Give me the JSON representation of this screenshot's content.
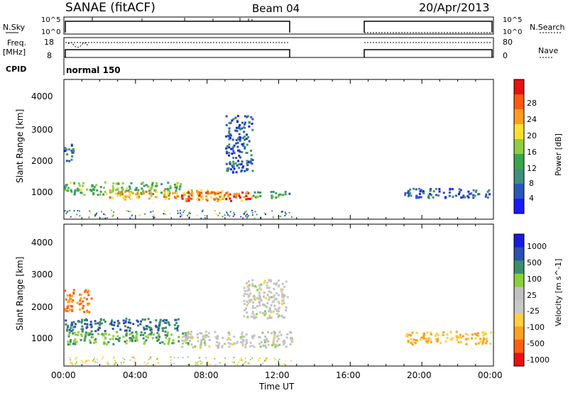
{
  "header": {
    "title": "SANAE (fitACF)",
    "beam": "Beam 04",
    "date": "20/Apr/2013"
  },
  "meta_panel": {
    "nsky_label": "N.Sky",
    "nsearch_label": "N.Search",
    "nsky_ticks": [
      "10^5",
      "10^0"
    ],
    "nsearch_ticks": [
      "10^5",
      "10^0"
    ],
    "freq_label_line1": "Freq.",
    "freq_label_line2": "[MHz]",
    "freq_ticks": [
      "18",
      "8"
    ],
    "nave_label": "Nave",
    "nave_ticks": [
      "80",
      "0"
    ],
    "cpid_label": "CPID",
    "cpid_value": "normal 150"
  },
  "colors": {
    "power": [
      "#1a1aff",
      "#2a56b8",
      "#3f8f7a",
      "#3aa54a",
      "#8fcf3f",
      "#ffe030",
      "#ff9d20",
      "#ff5a10",
      "#e81010"
    ],
    "velocity": [
      "#e81010",
      "#ff6010",
      "#ffa020",
      "#ffd040",
      "#c8c8c8",
      "#c0c0c0",
      "#8ad03a",
      "#3a8f6a",
      "#2a50b0",
      "#1a1ae0"
    ]
  },
  "chart_data": [
    {
      "type": "heatmap",
      "name": "power-panel",
      "ylabel": "Slant Range [km]",
      "yticks": [
        "4000",
        "3000",
        "2000",
        "1000"
      ],
      "ylim": [
        200,
        4600
      ],
      "xlim": [
        0,
        24
      ],
      "colorbar_label": "Power [dB]",
      "colorbar_ticks": [
        "28",
        "24",
        "20",
        "16",
        "12",
        "8",
        "4"
      ],
      "colorbar_range": [
        0,
        32
      ],
      "regions": [
        {
          "t0": 0.0,
          "t1": 6.5,
          "r0": 1000,
          "r1": 1400,
          "value": 14
        },
        {
          "t0": 2.5,
          "t1": 9.0,
          "r0": 850,
          "r1": 1150,
          "value": 22
        },
        {
          "t0": 6.5,
          "t1": 10.5,
          "r0": 800,
          "r1": 1100,
          "value": 26
        },
        {
          "t0": 10.5,
          "t1": 12.7,
          "r0": 900,
          "r1": 1100,
          "value": 12
        },
        {
          "t0": 0.0,
          "t1": 0.5,
          "r0": 2000,
          "r1": 2600,
          "value": 6
        },
        {
          "t0": 9.0,
          "t1": 10.5,
          "r0": 1700,
          "r1": 3500,
          "value": 6
        },
        {
          "t0": 19.0,
          "t1": 24.0,
          "r0": 900,
          "r1": 1200,
          "value": 6
        }
      ]
    },
    {
      "type": "heatmap",
      "name": "velocity-panel",
      "xlabel": "Time UT",
      "ylabel": "Slant Range [km]",
      "xticks": [
        "00:00",
        "04:00",
        "08:00",
        "12:00",
        "16:00",
        "20:00",
        "00:00"
      ],
      "yticks": [
        "4000",
        "3000",
        "2000",
        "1000"
      ],
      "ylim": [
        200,
        4600
      ],
      "xlim": [
        0,
        24
      ],
      "colorbar_label": "Velocity [m s^-1]",
      "colorbar_ticks": [
        "1000",
        "500",
        "100",
        "25",
        "-25",
        "-100",
        "-500",
        "-1000"
      ],
      "regions": [
        {
          "t0": 0.0,
          "t1": 6.5,
          "r0": 1300,
          "r1": 1700,
          "value": 500
        },
        {
          "t0": 0.0,
          "t1": 7.0,
          "r0": 900,
          "r1": 1300,
          "value": 100
        },
        {
          "t0": 6.5,
          "t1": 12.7,
          "r0": 800,
          "r1": 1300,
          "value": 0
        },
        {
          "t0": 0.0,
          "t1": 1.5,
          "r0": 1900,
          "r1": 2600,
          "value": -500
        },
        {
          "t0": 10.0,
          "t1": 12.5,
          "r0": 1700,
          "r1": 2900,
          "value": 0
        },
        {
          "t0": 19.0,
          "t1": 24.0,
          "r0": 900,
          "r1": 1300,
          "value": -100
        }
      ]
    }
  ]
}
